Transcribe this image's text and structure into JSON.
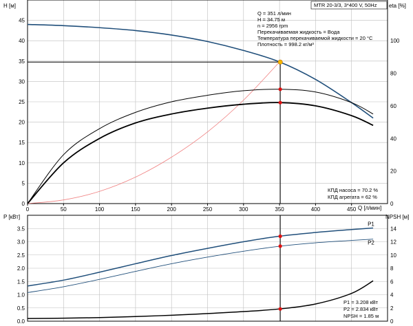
{
  "header": {
    "pump": "MTR 20-3/3, 3*400 V, 50Hz"
  },
  "info": {
    "lines": [
      "Q = 351 л/мин",
      "H = 34.75 м",
      "n = 2956 rpm",
      "Перекачиваемая жидкость = Вода",
      "Температура перекачиваемой жидкости = 20 °C",
      "Плотность = 998.2 кг/м³"
    ]
  },
  "efficiency_labels": [
    "КПД насоса = 70.2 %",
    "КПД агрегата = 62 %"
  ],
  "power_labels": [
    "P1 = 3.208 кВт",
    "P2 = 2.834 кВт",
    "NPSH = 1.85 м"
  ],
  "chart_data": [
    {
      "type": "line",
      "title": "",
      "xlabel": "Q [л/мин]",
      "ylabel": "H [м]",
      "y2label": "eta [%]",
      "xlim": [
        0,
        500
      ],
      "ylim": [
        0,
        50
      ],
      "y2lim": [
        0,
        125
      ],
      "x_ticks": [
        0,
        50,
        100,
        150,
        200,
        250,
        300,
        350,
        400,
        450
      ],
      "y_ticks": [
        0,
        5,
        10,
        15,
        20,
        25,
        30,
        35,
        40,
        45
      ],
      "y2_ticks": [
        0,
        20,
        40,
        60,
        80,
        100
      ],
      "grid": true,
      "duty_point": {
        "q": 351,
        "h": 34.75,
        "eta_pump": 70.2,
        "eta_unit": 62
      },
      "series": [
        {
          "axis": "left",
          "color": "#1f4e7a",
          "x": [
            0,
            50,
            100,
            150,
            200,
            250,
            300,
            350,
            400,
            450,
            480
          ],
          "values": [
            44,
            43.7,
            43.2,
            42.5,
            41.4,
            39.8,
            37.6,
            34.8,
            30.5,
            24.8,
            21
          ]
        },
        {
          "axis": "left",
          "color": "#f08080",
          "x": [
            0,
            50,
            100,
            150,
            200,
            250,
            300,
            350
          ],
          "values": [
            0,
            0.9,
            3.0,
            6.5,
            11.4,
            17.6,
            25.4,
            34.8
          ]
        },
        {
          "axis": "right",
          "color": "#000000",
          "x": [
            0,
            50,
            100,
            150,
            200,
            250,
            300,
            350,
            400,
            450,
            480
          ],
          "values": [
            0,
            30,
            46,
            56,
            62.5,
            66.5,
            69.3,
            70.2,
            68.5,
            62,
            55
          ]
        },
        {
          "axis": "right",
          "color": "#000000",
          "x": [
            0,
            50,
            100,
            150,
            200,
            250,
            300,
            350,
            400,
            450,
            480
          ],
          "values": [
            0,
            25,
            40,
            49.5,
            55,
            58.6,
            61,
            62,
            60,
            54,
            48
          ]
        }
      ]
    },
    {
      "type": "line",
      "title": "",
      "xlabel": "",
      "ylabel": "P [кВт]",
      "y2label": "NPSH [м]",
      "xlim": [
        0,
        500
      ],
      "ylim": [
        0,
        4
      ],
      "y2lim": [
        0,
        16
      ],
      "y_ticks": [
        0,
        0.5,
        1.0,
        1.5,
        2.0,
        2.5,
        3.0,
        3.5
      ],
      "y2_ticks": [
        0,
        2,
        4,
        6,
        8,
        10,
        12,
        14
      ],
      "grid": true,
      "duty_point": {
        "q": 351,
        "p1": 3.208,
        "p2": 2.834,
        "npsh": 1.85
      },
      "series": [
        {
          "name": "P1",
          "axis": "left",
          "color": "#1f4e7a",
          "x": [
            0,
            50,
            100,
            150,
            200,
            250,
            300,
            350,
            400,
            450,
            480
          ],
          "values": [
            1.33,
            1.55,
            1.85,
            2.17,
            2.48,
            2.75,
            3.0,
            3.21,
            3.35,
            3.46,
            3.52
          ]
        },
        {
          "name": "P2",
          "axis": "left",
          "color": "#1f4e7a",
          "x": [
            0,
            50,
            100,
            150,
            200,
            250,
            300,
            350,
            400,
            450,
            480
          ],
          "values": [
            1.08,
            1.3,
            1.58,
            1.88,
            2.17,
            2.42,
            2.64,
            2.83,
            2.96,
            3.05,
            3.1
          ]
        },
        {
          "axis": "right",
          "color": "#000000",
          "x": [
            0,
            50,
            100,
            150,
            200,
            250,
            300,
            350,
            400,
            450,
            480
          ],
          "values": [
            0.4,
            0.45,
            0.55,
            0.7,
            0.9,
            1.15,
            1.45,
            1.85,
            2.6,
            4.2,
            6.1
          ]
        }
      ]
    }
  ]
}
